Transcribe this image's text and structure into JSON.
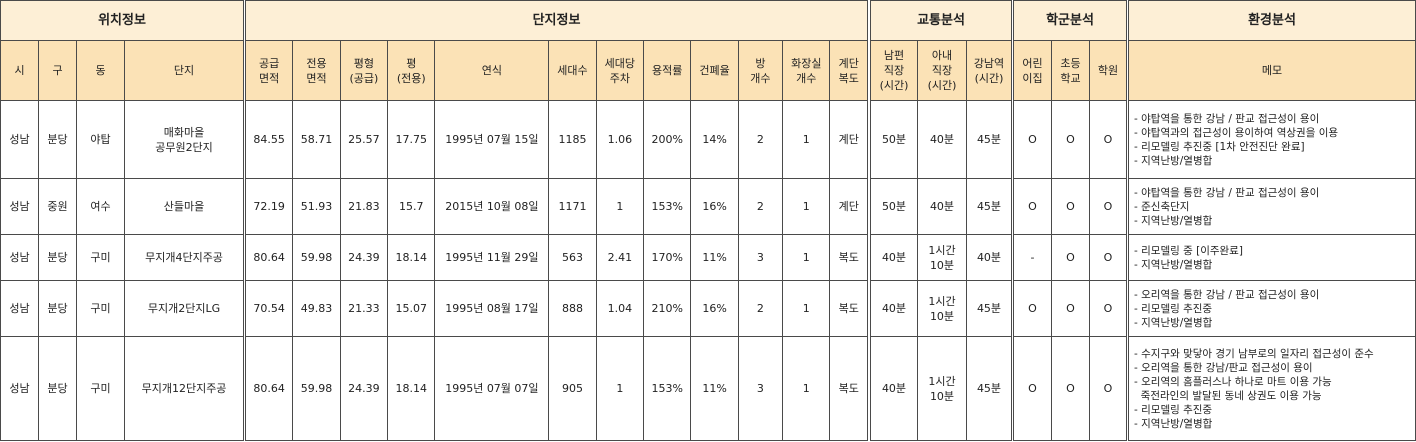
{
  "group_headers": [
    "위치정보",
    "단지정보",
    "교통분석",
    "학군분석",
    "환경분석"
  ],
  "columns": {
    "location": [
      "시",
      "구",
      "동",
      "단지"
    ],
    "complex": [
      "공급\n면적",
      "전용\n면적",
      "평형\n(공급)",
      "평\n(전용)",
      "연식",
      "세대수",
      "세대당\n주차",
      "용적률",
      "건폐율",
      "방\n개수",
      "화장실\n개수",
      "계단\n복도"
    ],
    "traffic": [
      "남편\n직장\n(시간)",
      "아내\n직장\n(시간)",
      "강남역\n(시간)"
    ],
    "school": [
      "어린\n이집",
      "초등\n학교",
      "학원"
    ],
    "env": [
      "메모"
    ]
  },
  "rows": [
    {
      "location": [
        "성남",
        "분당",
        "야탑",
        "매화마을\n공무원2단지"
      ],
      "complex": [
        "84.55",
        "58.71",
        "25.57",
        "17.75",
        "1995년 07월 15일",
        "1185",
        "1.06",
        "200%",
        "14%",
        "2",
        "1",
        "계단"
      ],
      "traffic": [
        "50분",
        "40분",
        "45분"
      ],
      "school": [
        "O",
        "O",
        "O"
      ],
      "memo": [
        "- 야탑역을 통한 강남 / 판교 접근성이 용이",
        "- 야탑역과의 접근성이 용이하여 역상권을 이용",
        "- 리모델링 추진중 [1차 안전진단 완료]",
        "- 지역난방/열병합"
      ]
    },
    {
      "location": [
        "성남",
        "중원",
        "여수",
        "산들마을"
      ],
      "complex": [
        "72.19",
        "51.93",
        "21.83",
        "15.7",
        "2015년 10월 08일",
        "1171",
        "1",
        "153%",
        "16%",
        "2",
        "1",
        "계단"
      ],
      "traffic": [
        "50분",
        "40분",
        "45분"
      ],
      "school": [
        "O",
        "O",
        "O"
      ],
      "memo": [
        "- 야탑역을 통한 강남 / 판교 접근성이 용이",
        "- 준신축단지",
        "- 지역난방/열병합"
      ]
    },
    {
      "location": [
        "성남",
        "분당",
        "구미",
        "무지개4단지주공"
      ],
      "complex": [
        "80.64",
        "59.98",
        "24.39",
        "18.14",
        "1995년 11월 29일",
        "563",
        "2.41",
        "170%",
        "11%",
        "3",
        "1",
        "복도"
      ],
      "traffic": [
        "40분",
        "1시간\n10분",
        "40분"
      ],
      "school": [
        "-",
        "O",
        "O"
      ],
      "memo": [
        "- 리모델링 중 [이주완료]",
        "- 지역난방/열병합"
      ]
    },
    {
      "location": [
        "성남",
        "분당",
        "구미",
        "무지개2단지LG"
      ],
      "complex": [
        "70.54",
        "49.83",
        "21.33",
        "15.07",
        "1995년 08월 17일",
        "888",
        "1.04",
        "210%",
        "16%",
        "2",
        "1",
        "복도"
      ],
      "traffic": [
        "40분",
        "1시간\n10분",
        "45분"
      ],
      "school": [
        "O",
        "O",
        "O"
      ],
      "memo": [
        "- 오리역을 통한 강남 / 판교 접근성이 용이",
        "- 리모델링 추진중",
        "- 지역난방/열병합"
      ]
    },
    {
      "location": [
        "성남",
        "분당",
        "구미",
        "무지개12단지주공"
      ],
      "complex": [
        "80.64",
        "59.98",
        "24.39",
        "18.14",
        "1995년 07월 07일",
        "905",
        "1",
        "153%",
        "11%",
        "3",
        "1",
        "복도"
      ],
      "traffic": [
        "40분",
        "1시간\n10분",
        "45분"
      ],
      "school": [
        "O",
        "O",
        "O"
      ],
      "memo": [
        "- 수지구와 맞닿아 경기 남부로의 일자리 접근성이 준수",
        "- 오리역을 통한 강남/판교 접근성이 용이",
        "- 오리역의 홈플러스나 하나로 마트 이용 가능",
        "  죽전라인의 발달된 동네 상권도 이용 가능",
        "- 리모델링 추진중",
        "- 지역난방/열병합"
      ]
    }
  ]
}
